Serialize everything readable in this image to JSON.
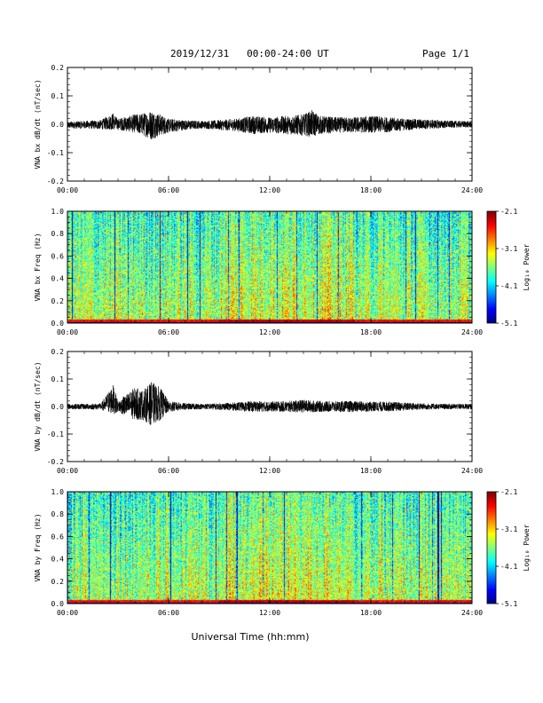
{
  "header": {
    "title": "2019/12/31   00:00-24:00 UT",
    "page": "Page 1/1"
  },
  "xaxis_label": "Universal Time (hh:mm)",
  "chart_data": [
    {
      "type": "line",
      "ylabel": "VNA bx dB/dt (nT/sec)",
      "xlim": [
        "00:00",
        "24:00"
      ],
      "xticks": [
        "00:00",
        "06:00",
        "12:00",
        "18:00",
        "24:00"
      ],
      "ylim": [
        -0.2,
        0.2
      ],
      "yticks": [
        "-0.2",
        "-0.1",
        "0.0",
        "0.1",
        "0.2"
      ],
      "envelope": {
        "x_hours": [
          0,
          1,
          2,
          2.7,
          3,
          4,
          4.5,
          5,
          5.5,
          6,
          7,
          8,
          9,
          10,
          11,
          12,
          13,
          14,
          14.5,
          15,
          16,
          17,
          18,
          19,
          20,
          21,
          22,
          23,
          24
        ],
        "max": [
          0.01,
          0.012,
          0.015,
          0.04,
          0.02,
          0.035,
          0.04,
          0.05,
          0.035,
          0.02,
          0.015,
          0.012,
          0.015,
          0.02,
          0.03,
          0.025,
          0.03,
          0.035,
          0.05,
          0.03,
          0.025,
          0.025,
          0.03,
          0.025,
          0.02,
          0.018,
          0.015,
          0.012,
          0.012
        ],
        "min": [
          -0.015,
          -0.015,
          -0.018,
          -0.02,
          -0.02,
          -0.03,
          -0.04,
          -0.055,
          -0.04,
          -0.03,
          -0.02,
          -0.015,
          -0.02,
          -0.025,
          -0.035,
          -0.03,
          -0.035,
          -0.04,
          -0.045,
          -0.035,
          -0.03,
          -0.03,
          -0.03,
          -0.028,
          -0.022,
          -0.018,
          -0.015,
          -0.012,
          -0.012
        ]
      }
    },
    {
      "type": "heatmap",
      "ylabel": "VNA bx Freq (Hz)",
      "xlim": [
        "00:00",
        "24:00"
      ],
      "xticks": [
        "00:00",
        "06:00",
        "12:00",
        "18:00",
        "24:00"
      ],
      "ylim": [
        0,
        1
      ],
      "yticks": [
        "0.0",
        "0.2",
        "0.4",
        "0.6",
        "0.8",
        "1.0"
      ],
      "colorbar": {
        "label": "Log₁₀ Power",
        "range": [
          -5.1,
          -2.1
        ],
        "ticks": [
          "-2.1",
          "-3.1",
          "-4.1",
          "-5.1"
        ]
      }
    },
    {
      "type": "line",
      "ylabel": "VNA by dB/dt (nT/sec)",
      "xlim": [
        "00:00",
        "24:00"
      ],
      "xticks": [
        "00:00",
        "06:00",
        "12:00",
        "18:00",
        "24:00"
      ],
      "ylim": [
        -0.2,
        0.2
      ],
      "yticks": [
        "-0.2",
        "-0.1",
        "0.0",
        "0.1",
        "0.2"
      ],
      "envelope": {
        "x_hours": [
          0,
          1,
          2,
          2.7,
          3,
          4,
          4.5,
          5,
          5.5,
          6,
          7,
          8,
          9,
          10,
          11,
          12,
          13,
          14,
          15,
          16,
          17,
          18,
          19,
          20,
          21,
          22,
          23,
          24
        ],
        "max": [
          0.01,
          0.01,
          0.012,
          0.08,
          0.02,
          0.07,
          0.06,
          0.09,
          0.07,
          0.02,
          0.012,
          0.01,
          0.012,
          0.015,
          0.02,
          0.018,
          0.02,
          0.025,
          0.02,
          0.02,
          0.02,
          0.018,
          0.018,
          0.015,
          0.012,
          0.01,
          0.01,
          0.01
        ],
        "min": [
          -0.01,
          -0.01,
          -0.012,
          -0.03,
          -0.02,
          -0.05,
          -0.05,
          -0.07,
          -0.05,
          -0.02,
          -0.012,
          -0.01,
          -0.012,
          -0.015,
          -0.02,
          -0.018,
          -0.02,
          -0.022,
          -0.02,
          -0.02,
          -0.02,
          -0.018,
          -0.018,
          -0.015,
          -0.012,
          -0.01,
          -0.01,
          -0.01
        ]
      }
    },
    {
      "type": "heatmap",
      "ylabel": "VNA by Freq (Hz)",
      "xlim": [
        "00:00",
        "24:00"
      ],
      "xticks": [
        "00:00",
        "06:00",
        "12:00",
        "18:00",
        "24:00"
      ],
      "ylim": [
        0,
        1
      ],
      "yticks": [
        "0.0",
        "0.2",
        "0.4",
        "0.6",
        "0.8",
        "1.0"
      ],
      "colorbar": {
        "label": "Log₁₀ Power",
        "range": [
          -5.1,
          -2.1
        ],
        "ticks": [
          "-2.1",
          "-3.1",
          "-4.1",
          "-5.1"
        ]
      }
    }
  ]
}
